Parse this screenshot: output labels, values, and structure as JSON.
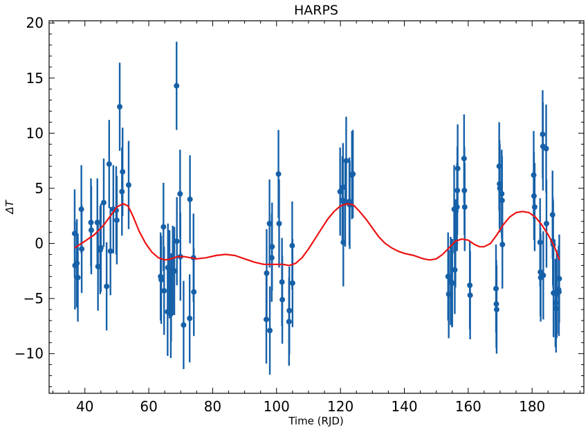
{
  "chart_data": {
    "type": "scatter",
    "title": "HARPS",
    "xlabel": "Time (RJD)",
    "ylabel": "ΔT",
    "xlim": [
      28.8,
      196.2
    ],
    "ylim": [
      -13.6,
      20.2
    ],
    "xticks": [
      40,
      60,
      80,
      100,
      120,
      140,
      160,
      180
    ],
    "yticks": [
      -10,
      -5,
      0,
      5,
      10,
      15,
      20
    ],
    "xtick_labels": [
      "40",
      "60",
      "80",
      "100",
      "120",
      "140",
      "160",
      "180"
    ],
    "ytick_labels": [
      "−10",
      "−5",
      "0",
      "5",
      "10",
      "15",
      "20"
    ],
    "grid": false,
    "colors": {
      "points": "#1660a8",
      "model": "#ee1111",
      "axes": "#000000"
    },
    "series": [
      {
        "type": "errorbar",
        "error": 4,
        "points": [
          [
            36.8,
            0.9
          ],
          [
            36.9,
            -2.0
          ],
          [
            37.5,
            -1.8
          ],
          [
            37.8,
            -3.1
          ],
          [
            38.9,
            3.1
          ],
          [
            39.0,
            -0.5
          ],
          [
            41.9,
            1.9
          ],
          [
            42.0,
            1.2
          ],
          [
            43.9,
            1.9
          ],
          [
            44.1,
            -2.1
          ],
          [
            44.8,
            -0.6
          ],
          [
            45.0,
            -0.4
          ],
          [
            45.9,
            3.7
          ],
          [
            46.8,
            -3.9
          ],
          [
            47.6,
            7.2
          ],
          [
            48.0,
            -0.7
          ],
          [
            48.9,
            3.1
          ],
          [
            49.8,
            3.0
          ],
          [
            50.0,
            2.1
          ],
          [
            50.9,
            12.4
          ],
          [
            51.6,
            4.7
          ],
          [
            51.8,
            6.5
          ],
          [
            53.7,
            5.3
          ],
          [
            63.7,
            -3.0
          ],
          [
            63.9,
            -3.3
          ],
          [
            64.6,
            1.5
          ],
          [
            64.8,
            -4.3
          ],
          [
            65.9,
            -6.2
          ],
          [
            66.0,
            -2.2
          ],
          [
            66.5,
            -2.8
          ],
          [
            66.9,
            -6.4
          ],
          [
            67.0,
            -4.9
          ],
          [
            67.5,
            -2.4
          ],
          [
            68.0,
            -2.5
          ],
          [
            68.7,
            14.3
          ],
          [
            68.8,
            0.2
          ],
          [
            69.8,
            4.5
          ],
          [
            69.9,
            -1.2
          ],
          [
            70.9,
            -7.4
          ],
          [
            72.8,
            -6.8
          ],
          [
            72.9,
            4.0
          ],
          [
            74.0,
            -1.3
          ],
          [
            74.1,
            -4.4
          ],
          [
            96.8,
            -6.9
          ],
          [
            96.9,
            -2.7
          ],
          [
            97.8,
            1.8
          ],
          [
            97.9,
            -7.9
          ],
          [
            98.5,
            -1.3
          ],
          [
            98.6,
            -0.3
          ],
          [
            100.6,
            6.3
          ],
          [
            100.8,
            1.8
          ],
          [
            101.7,
            -3.5
          ],
          [
            101.8,
            -5.1
          ],
          [
            103.9,
            -7.1
          ],
          [
            104.0,
            -6.1
          ],
          [
            104.9,
            -0.2
          ],
          [
            105.0,
            -3.6
          ],
          [
            119.9,
            4.7
          ],
          [
            120.6,
            3.9
          ],
          [
            120.8,
            5.1
          ],
          [
            120.9,
            0.1
          ],
          [
            121.5,
            3.7
          ],
          [
            121.8,
            7.5
          ],
          [
            122.8,
            3.8
          ],
          [
            122.9,
            3.5
          ],
          [
            123.6,
            6.2
          ],
          [
            123.9,
            6.3
          ],
          [
            153.7,
            -3.0
          ],
          [
            153.9,
            -4.6
          ],
          [
            154.5,
            -3.4
          ],
          [
            154.9,
            -3.6
          ],
          [
            155.0,
            -3.6
          ],
          [
            155.6,
            3.1
          ],
          [
            155.8,
            -2.4
          ],
          [
            156.0,
            0.0
          ],
          [
            156.5,
            3.3
          ],
          [
            156.6,
            4.8
          ],
          [
            156.7,
            6.8
          ],
          [
            158.7,
            7.7
          ],
          [
            158.8,
            4.8
          ],
          [
            158.9,
            3.3
          ],
          [
            160.5,
            -3.8
          ],
          [
            160.6,
            -4.7
          ],
          [
            168.7,
            -4.1
          ],
          [
            168.8,
            -5.5
          ],
          [
            168.9,
            -6.0
          ],
          [
            169.7,
            7.0
          ],
          [
            169.8,
            5.4
          ],
          [
            169.9,
            5.0
          ],
          [
            170.5,
            4.5
          ],
          [
            170.6,
            3.9
          ],
          [
            170.7,
            -0.1
          ],
          [
            180.5,
            6.2
          ],
          [
            180.6,
            4.3
          ],
          [
            180.8,
            3.3
          ],
          [
            182.5,
            0.1
          ],
          [
            182.6,
            -2.6
          ],
          [
            182.7,
            -3.1
          ],
          [
            183.3,
            9.9
          ],
          [
            183.4,
            8.8
          ],
          [
            183.5,
            -2.9
          ],
          [
            184.4,
            8.6
          ],
          [
            184.5,
            1.8
          ],
          [
            186.4,
            2.6
          ],
          [
            186.5,
            0.2
          ],
          [
            186.6,
            -0.1
          ],
          [
            186.7,
            -4.5
          ],
          [
            187.3,
            -5.4
          ],
          [
            187.5,
            -5.9
          ],
          [
            187.7,
            -4.6
          ],
          [
            188.3,
            -4.2
          ],
          [
            188.4,
            -4.4
          ],
          [
            188.5,
            -3.2
          ]
        ]
      },
      {
        "type": "line",
        "points": [
          [
            36.8,
            -0.4
          ],
          [
            40,
            0.2
          ],
          [
            43,
            0.8
          ],
          [
            46,
            1.7
          ],
          [
            48,
            2.5
          ],
          [
            50,
            3.3
          ],
          [
            52,
            3.6
          ],
          [
            53.5,
            3.4
          ],
          [
            55,
            2.5
          ],
          [
            57,
            1.1
          ],
          [
            59,
            0.0
          ],
          [
            61,
            -0.8
          ],
          [
            63,
            -1.3
          ],
          [
            65,
            -1.5
          ],
          [
            67,
            -1.4
          ],
          [
            69,
            -1.2
          ],
          [
            71,
            -1.2
          ],
          [
            73,
            -1.3
          ],
          [
            75,
            -1.4
          ],
          [
            78,
            -1.3
          ],
          [
            81,
            -1.1
          ],
          [
            84,
            -1.0
          ],
          [
            87,
            -1.1
          ],
          [
            90,
            -1.4
          ],
          [
            93,
            -1.7
          ],
          [
            96,
            -1.9
          ],
          [
            99,
            -1.9
          ],
          [
            102,
            -1.9
          ],
          [
            104,
            -2.0
          ],
          [
            106,
            -1.8
          ],
          [
            108,
            -1.3
          ],
          [
            110,
            -0.5
          ],
          [
            112,
            0.4
          ],
          [
            114,
            1.3
          ],
          [
            116,
            2.2
          ],
          [
            118,
            2.9
          ],
          [
            120,
            3.4
          ],
          [
            122,
            3.6
          ],
          [
            124,
            3.5
          ],
          [
            126,
            2.9
          ],
          [
            128,
            2.2
          ],
          [
            130,
            1.4
          ],
          [
            132,
            0.6
          ],
          [
            134,
            0.0
          ],
          [
            136,
            -0.4
          ],
          [
            138,
            -0.7
          ],
          [
            140,
            -0.9
          ],
          [
            143,
            -1.1
          ],
          [
            146,
            -1.4
          ],
          [
            148,
            -1.5
          ],
          [
            150,
            -1.4
          ],
          [
            152,
            -1.0
          ],
          [
            154,
            -0.4
          ],
          [
            156,
            0.2
          ],
          [
            158,
            0.4
          ],
          [
            160,
            0.3
          ],
          [
            162,
            -0.1
          ],
          [
            163.5,
            -0.3
          ],
          [
            165,
            -0.3
          ],
          [
            167,
            0.0
          ],
          [
            169,
            0.8
          ],
          [
            171,
            1.7
          ],
          [
            173,
            2.4
          ],
          [
            175,
            2.8
          ],
          [
            177,
            2.9
          ],
          [
            179,
            2.8
          ],
          [
            181,
            2.4
          ],
          [
            183,
            1.7
          ],
          [
            185,
            0.8
          ],
          [
            187,
            -0.3
          ],
          [
            188.6,
            -1.5
          ]
        ]
      }
    ]
  }
}
